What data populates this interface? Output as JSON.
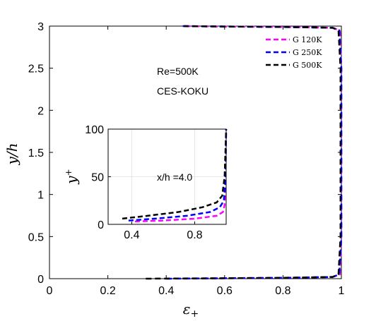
{
  "chart_data": {
    "main": {
      "type": "line",
      "xlabel": "ε+",
      "ylabel": "y/h",
      "xlim": [
        0,
        1
      ],
      "ylim": [
        0,
        3
      ],
      "xticks": [
        "0",
        "0.2",
        "0.4",
        "0.6",
        "0.8",
        "1"
      ],
      "yticks": [
        "0",
        "0.5",
        "1",
        "1.5",
        "2",
        "2.5",
        "3"
      ],
      "grid": false,
      "legend_position": "top-right",
      "annotations": [
        "Re=500K",
        "CES-KOKU"
      ],
      "series": [
        {
          "name": "G 120K",
          "color": "#ff00ff",
          "dash": "dashed",
          "x": [
            0.46,
            0.6,
            0.8,
            0.97,
            0.995,
            1.0,
            1.0,
            1.0,
            0.995,
            0.97,
            0.8,
            0.6,
            0.45
          ],
          "y": [
            0.0,
            0.005,
            0.01,
            0.02,
            0.05,
            0.5,
            1.5,
            2.5,
            2.95,
            2.98,
            2.99,
            2.995,
            3.0
          ]
        },
        {
          "name": "G 250K",
          "color": "#0000ff",
          "dash": "dashed",
          "x": [
            0.4,
            0.6,
            0.8,
            0.97,
            0.993,
            1.0,
            1.0,
            1.0,
            0.993,
            0.97,
            0.8,
            0.6,
            0.45
          ],
          "y": [
            0.0,
            0.005,
            0.01,
            0.02,
            0.05,
            0.5,
            1.5,
            2.5,
            2.95,
            2.98,
            2.99,
            2.995,
            3.0
          ]
        },
        {
          "name": "G 500K",
          "color": "#000000",
          "dash": "dashed",
          "x": [
            0.33,
            0.6,
            0.8,
            0.97,
            0.99,
            0.997,
            0.997,
            0.997,
            0.99,
            0.97,
            0.8,
            0.6,
            0.46
          ],
          "y": [
            0.0,
            0.005,
            0.01,
            0.02,
            0.05,
            0.5,
            1.5,
            2.5,
            2.95,
            2.98,
            2.99,
            2.995,
            3.0
          ]
        }
      ]
    },
    "inset": {
      "type": "line",
      "ylabel": "y+",
      "xlim": [
        0.25,
        1.0
      ],
      "ylim": [
        0,
        100
      ],
      "xticks": [
        "0.4",
        "0.8"
      ],
      "yticks": [
        "0",
        "50",
        "100"
      ],
      "grid": true,
      "annotation": "x/h =4.0",
      "series": [
        {
          "name": "G 120K",
          "color": "#ff00ff",
          "x": [
            0.42,
            0.6,
            0.8,
            0.94,
            0.98,
            0.99,
            0.995,
            1.0
          ],
          "y": [
            3,
            4,
            6,
            9,
            13,
            20,
            40,
            100
          ]
        },
        {
          "name": "G 250K",
          "color": "#0000ff",
          "x": [
            0.38,
            0.55,
            0.75,
            0.9,
            0.96,
            0.985,
            0.995,
            1.0
          ],
          "y": [
            4,
            6,
            9,
            13,
            18,
            25,
            45,
            100
          ]
        },
        {
          "name": "G 500K",
          "color": "#000000",
          "x": [
            0.34,
            0.5,
            0.7,
            0.85,
            0.94,
            0.975,
            0.99,
            1.0
          ],
          "y": [
            6,
            9,
            13,
            18,
            23,
            30,
            50,
            100
          ]
        }
      ]
    }
  }
}
